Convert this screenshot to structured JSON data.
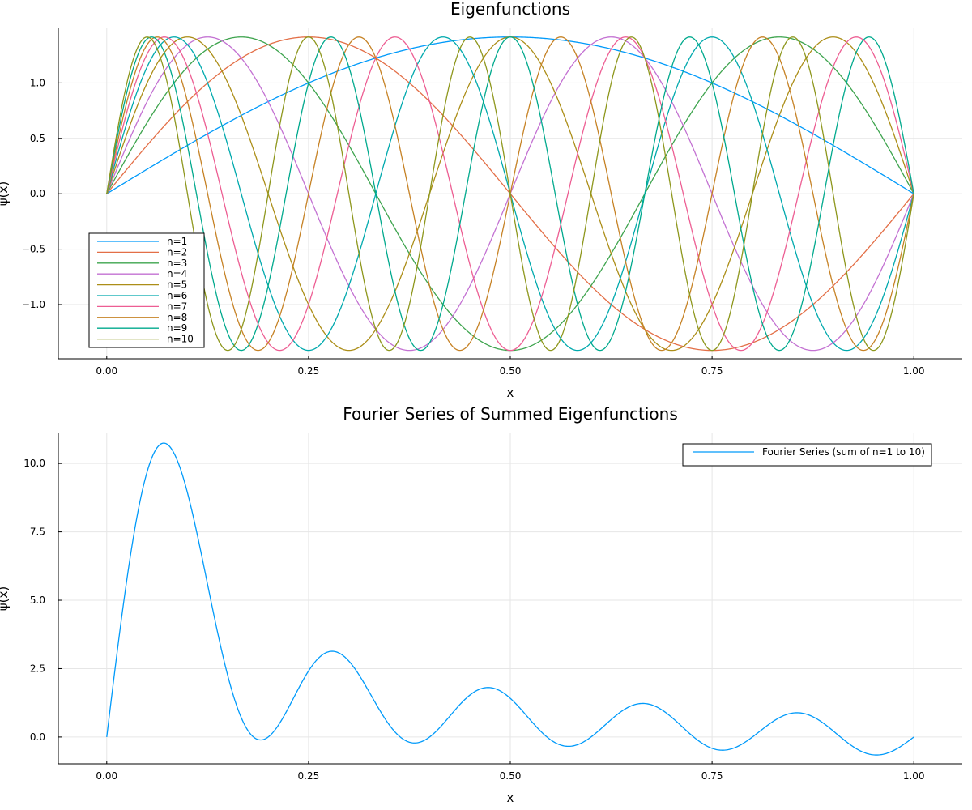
{
  "chart_data": [
    {
      "type": "line",
      "title": "Eigenfunctions",
      "xlabel": "x",
      "ylabel": "ψ(x)",
      "xlim": [
        -0.06,
        1.06
      ],
      "ylim": [
        -1.49,
        1.5
      ],
      "xticks": [
        0.0,
        0.25,
        0.5,
        0.75,
        1.0
      ],
      "xtick_labels": [
        "0.00",
        "0.25",
        "0.50",
        "0.75",
        "1.00"
      ],
      "yticks": [
        -1.0,
        -0.5,
        0.0,
        0.5,
        1.0
      ],
      "ytick_labels": [
        "−1.0",
        "−0.5",
        "0.0",
        "0.5",
        "1.0"
      ],
      "grid": true,
      "legend_position": "bottom-left",
      "function": "ψn(x) = √2 · sin(nπx), x ∈ [0, 1]",
      "series": [
        {
          "name": "n=1",
          "n": 1,
          "color": "#009AFA"
        },
        {
          "name": "n=2",
          "n": 2,
          "color": "#E36F47"
        },
        {
          "name": "n=3",
          "n": 3,
          "color": "#3EA44E"
        },
        {
          "name": "n=4",
          "n": 4,
          "color": "#C371D2"
        },
        {
          "name": "n=5",
          "n": 5,
          "color": "#AC8E18"
        },
        {
          "name": "n=6",
          "n": 6,
          "color": "#00A9AD"
        },
        {
          "name": "n=7",
          "n": 7,
          "color": "#ED5E93"
        },
        {
          "name": "n=8",
          "n": 8,
          "color": "#C68225"
        },
        {
          "name": "n=9",
          "n": 9,
          "color": "#00A98D"
        },
        {
          "name": "n=10",
          "n": 10,
          "color": "#8E971D"
        }
      ]
    },
    {
      "type": "line",
      "title": "Fourier Series of Summed Eigenfunctions",
      "xlabel": "x",
      "ylabel": "ψ(x)",
      "xlim": [
        -0.06,
        1.06
      ],
      "ylim": [
        -0.98,
        11.1
      ],
      "xticks": [
        0.0,
        0.25,
        0.5,
        0.75,
        1.0
      ],
      "xtick_labels": [
        "0.00",
        "0.25",
        "0.50",
        "0.75",
        "1.00"
      ],
      "yticks": [
        0.0,
        2.5,
        5.0,
        7.5,
        10.0
      ],
      "ytick_labels": [
        "0.0",
        "2.5",
        "5.0",
        "7.5",
        "10.0"
      ],
      "grid": true,
      "legend_position": "top-right",
      "function": "S(x) = Σ_{n=1..10} √2 · sin(nπx)",
      "series": [
        {
          "name": "Fourier Series (sum of n=1 to 10)",
          "color": "#009AFA"
        }
      ]
    }
  ]
}
